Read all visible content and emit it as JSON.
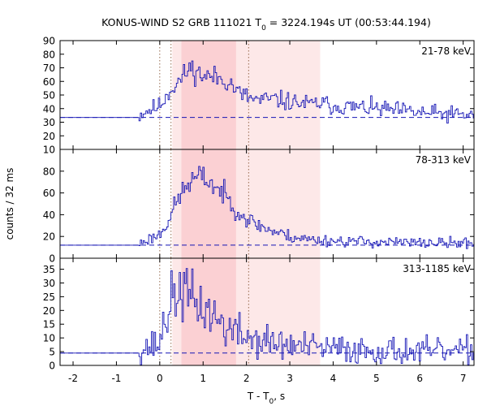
{
  "chart_data": {
    "type": "line",
    "title": {
      "prefix": "KONUS-WIND S2 GRB 111021 T",
      "sub": "0",
      "suffix": " = 3224.194s UT (00:53:44.194)"
    },
    "xlabel": {
      "prefix": "T - T",
      "sub": "0",
      "suffix": ", s"
    },
    "ylabel": "counts / 32 ms",
    "xlim": [
      -2.3,
      7.25
    ],
    "x_ticks": [
      -2,
      -1,
      0,
      1,
      2,
      3,
      4,
      5,
      6,
      7
    ],
    "x_tick_labels": [
      "-2",
      "-1",
      "0",
      "1",
      "2",
      "3",
      "4",
      "5",
      "6",
      "7"
    ],
    "line_color": "#1515b5",
    "shade_color_light": "#fde8e8",
    "shade_color_dark": "#fbd0d3",
    "shaded_intervals": {
      "light": [
        0.29,
        3.7
      ],
      "dark": [
        0.5,
        1.76
      ]
    },
    "vertical_markers": [
      0.0,
      0.26,
      2.05
    ],
    "panels": [
      {
        "energy_band": "21-78 keV",
        "ylim": [
          10,
          90
        ],
        "y_ticks": [
          10,
          20,
          30,
          40,
          50,
          60,
          70,
          80,
          90
        ],
        "y_tick_labels": [
          "10",
          "20",
          "30",
          "40",
          "50",
          "60",
          "70",
          "80",
          "90"
        ],
        "background_level": 33.5,
        "lightcurve_envelope": {
          "x": [
            -2.3,
            -0.5,
            -0.4,
            0.0,
            0.2,
            0.5,
            0.7,
            1.0,
            1.3,
            1.6,
            1.8,
            2.05,
            2.3,
            2.6,
            3.0,
            3.5,
            3.7,
            4.0,
            5.0,
            6.0,
            7.25
          ],
          "y": [
            33.5,
            33.5,
            37,
            42,
            52,
            62,
            70,
            64,
            63,
            60,
            52,
            48,
            46,
            47,
            45,
            43,
            44,
            42,
            40,
            37,
            35
          ]
        },
        "noise_amplitude": 4.5,
        "seed": 11
      },
      {
        "energy_band": "78-313 keV",
        "ylim": [
          0,
          100
        ],
        "y_ticks": [
          0,
          20,
          40,
          60,
          80
        ],
        "y_tick_labels": [
          "0",
          "20",
          "40",
          "60",
          "80"
        ],
        "background_level": 12,
        "lightcurve_envelope": {
          "x": [
            -2.3,
            -0.5,
            -0.4,
            0.0,
            0.2,
            0.35,
            0.5,
            0.7,
            0.9,
            1.1,
            1.3,
            1.5,
            1.7,
            1.9,
            2.05,
            2.3,
            2.6,
            3.0,
            3.5,
            4.0,
            5.0,
            6.0,
            7.25
          ],
          "y": [
            12,
            12,
            15,
            22,
            35,
            48,
            60,
            70,
            75,
            72,
            65,
            58,
            48,
            40,
            35,
            30,
            25,
            20,
            17,
            16,
            15,
            14,
            14
          ]
        },
        "noise_amplitude": 3.5,
        "seed": 23
      },
      {
        "energy_band": "313-1185 keV",
        "ylim": [
          0,
          39
        ],
        "y_ticks": [
          0,
          5,
          10,
          15,
          20,
          25,
          30,
          35
        ],
        "y_tick_labels": [
          "0",
          "5",
          "10",
          "15",
          "20",
          "25",
          "30",
          "35"
        ],
        "background_level": 4.5,
        "lightcurve_envelope": {
          "x": [
            -2.3,
            -0.5,
            -0.45,
            0.0,
            0.1,
            0.3,
            0.5,
            0.7,
            0.9,
            1.1,
            1.3,
            1.6,
            1.9,
            2.3,
            2.8,
            3.5,
            4.0,
            5.0,
            6.0,
            7.25
          ],
          "y": [
            4.5,
            4.5,
            6,
            8,
            16,
            24,
            28,
            24,
            22,
            20,
            17,
            13,
            11,
            9,
            7.5,
            6.5,
            6,
            5.5,
            5,
            5
          ]
        },
        "noise_amplitude": 3.5,
        "seed": 37
      }
    ],
    "bin_width_s": 0.032,
    "grid": false,
    "legend": "none"
  }
}
